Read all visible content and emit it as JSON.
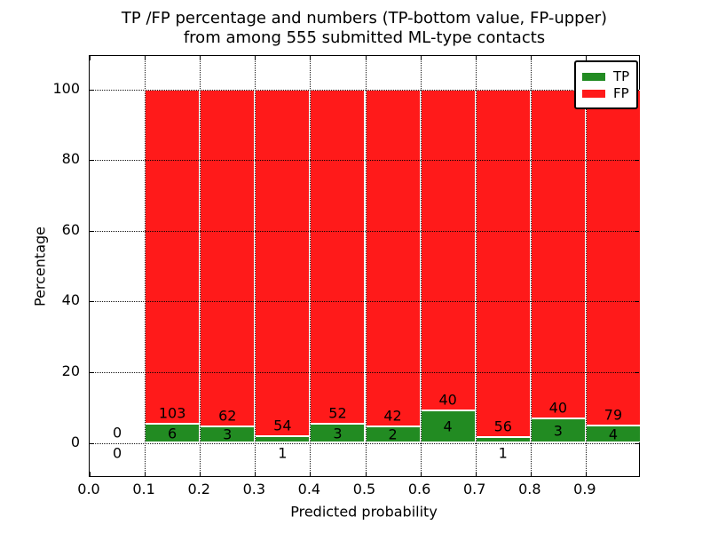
{
  "figure": {
    "title_line1": "TP /FP percentage and numbers (TP-bottom value, FP-upper)",
    "title_line2": "from among 555 submitted ML-type contacts"
  },
  "chart_data": {
    "type": "bar",
    "stacked": true,
    "normalization": "each bar totals 100% (TP bottom green, FP upper red); printed numbers are raw counts",
    "title": "TP /FP percentage and numbers (TP-bottom value, FP-upper)\nfrom among 555 submitted ML-type contacts",
    "xlabel": "Predicted probability",
    "ylabel": "Percentage",
    "xlim": [
      0.0,
      1.0
    ],
    "ylim": [
      -10,
      110
    ],
    "xticks": [
      0.0,
      0.1,
      0.2,
      0.3,
      0.4,
      0.5,
      0.6,
      0.7,
      0.8,
      0.9
    ],
    "yticks": [
      0,
      20,
      40,
      60,
      80,
      100
    ],
    "grid": "dotted, both axes, drawn above bars",
    "legend_position": "upper right",
    "total_contacts": 555,
    "legend": {
      "entries": [
        {
          "label": "TP",
          "color": "#228b22"
        },
        {
          "label": "FP",
          "color": "#ff1a1a"
        }
      ]
    },
    "bins": [
      {
        "x0": 0.0,
        "x1": 0.1,
        "tp": 0,
        "fp": 0
      },
      {
        "x0": 0.1,
        "x1": 0.2,
        "tp": 6,
        "fp": 103
      },
      {
        "x0": 0.2,
        "x1": 0.3,
        "tp": 3,
        "fp": 62
      },
      {
        "x0": 0.3,
        "x1": 0.4,
        "tp": 1,
        "fp": 54
      },
      {
        "x0": 0.4,
        "x1": 0.5,
        "tp": 3,
        "fp": 52
      },
      {
        "x0": 0.5,
        "x1": 0.6,
        "tp": 2,
        "fp": 42
      },
      {
        "x0": 0.6,
        "x1": 0.7,
        "tp": 4,
        "fp": 40
      },
      {
        "x0": 0.7,
        "x1": 0.8,
        "tp": 1,
        "fp": 56
      },
      {
        "x0": 0.8,
        "x1": 0.9,
        "tp": 3,
        "fp": 40
      },
      {
        "x0": 0.9,
        "x1": 1.0,
        "tp": 4,
        "fp": 79
      }
    ]
  },
  "colors": {
    "tp_green": "#228b22",
    "fp_red": "#ff1a1a",
    "grid": "#000000",
    "text": "#000000",
    "background": "#ffffff"
  }
}
